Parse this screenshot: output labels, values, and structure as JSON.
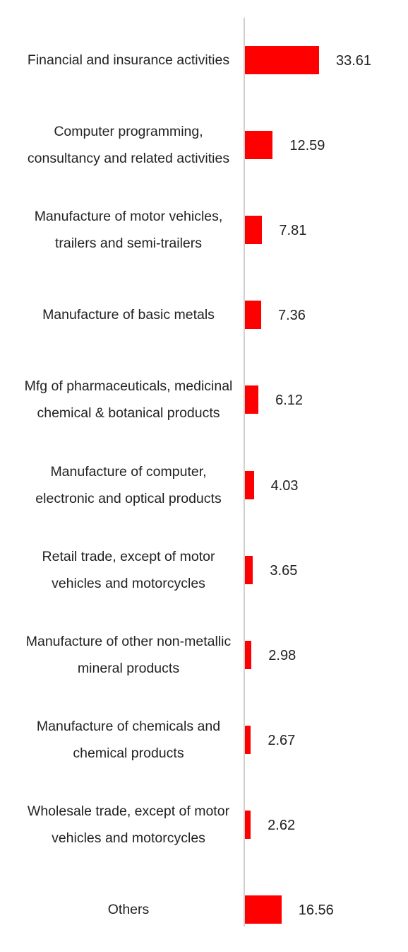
{
  "chart_data": {
    "type": "bar",
    "orientation": "horizontal",
    "categories": [
      "Financial and insurance activities",
      "Computer programming, consultancy and related activities",
      "Manufacture of motor vehicles, trailers and semi-trailers",
      "Manufacture of basic metals",
      "Mfg of pharmaceuticals, medicinal chemical & botanical products",
      "Manufacture of computer, electronic and optical products",
      "Retail trade, except of motor vehicles and motorcycles",
      "Manufacture of other non-metallic mineral products",
      "Manufacture of chemicals and chemical products",
      "Wholesale trade, except of motor vehicles and motorcycles",
      "Others"
    ],
    "values": [
      33.61,
      12.59,
      7.81,
      7.36,
      6.12,
      4.03,
      3.65,
      2.98,
      2.67,
      2.62,
      16.56
    ],
    "color": "#ff0000"
  }
}
